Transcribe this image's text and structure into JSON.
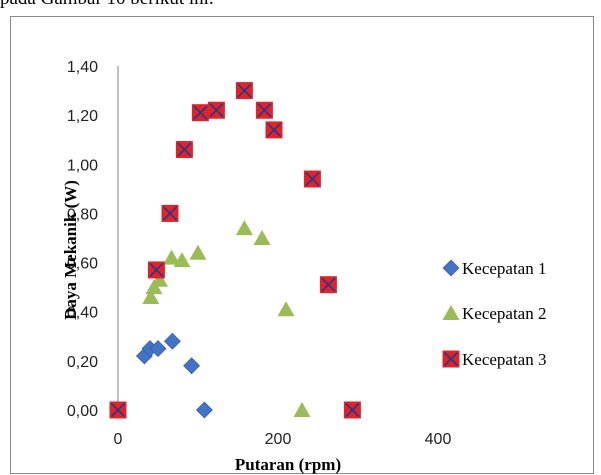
{
  "caption": "pada Gambar 10 berikut ini.",
  "chart_data": {
    "type": "scatter",
    "xlabel": "Putaran (rpm)",
    "ylabel": "Daya Mekanik  (W)",
    "xlim": [
      0,
      400
    ],
    "ylim": [
      0,
      1.4
    ],
    "xticks": [
      0,
      200,
      400
    ],
    "xtick_labels": [
      "0",
      "200",
      "400"
    ],
    "yticks": [
      0,
      0.2,
      0.4,
      0.6,
      0.8,
      1.0,
      1.2,
      1.4
    ],
    "ytick_labels": [
      "0,00",
      "0,20",
      "0,40",
      "0,60",
      "0,80",
      "1,00",
      "1,20",
      "1,40"
    ],
    "grid": false,
    "legend_position": "right",
    "series": [
      {
        "name": "Kecepatan 1",
        "marker": "diamond",
        "color": "#4472c4",
        "points": [
          [
            33,
            0.22
          ],
          [
            40,
            0.25
          ],
          [
            50,
            0.25
          ],
          [
            68,
            0.28
          ],
          [
            92,
            0.18
          ],
          [
            108,
            0.0
          ]
        ]
      },
      {
        "name": "Kecepatan 2",
        "marker": "triangle",
        "color": "#9bbb59",
        "points": [
          [
            41,
            0.46
          ],
          [
            45,
            0.5
          ],
          [
            52,
            0.53
          ],
          [
            67,
            0.62
          ],
          [
            80,
            0.61
          ],
          [
            100,
            0.64
          ],
          [
            158,
            0.74
          ],
          [
            180,
            0.7
          ],
          [
            210,
            0.41
          ],
          [
            230,
            0.0
          ]
        ]
      },
      {
        "name": "Kecepatan 3",
        "marker": "square-x",
        "color": "#e0232b",
        "points": [
          [
            0,
            0.0
          ],
          [
            48,
            0.57
          ],
          [
            65,
            0.8
          ],
          [
            83,
            1.06
          ],
          [
            103,
            1.21
          ],
          [
            123,
            1.22
          ],
          [
            158,
            1.3
          ],
          [
            183,
            1.22
          ],
          [
            195,
            1.14
          ],
          [
            243,
            0.94
          ],
          [
            263,
            0.51
          ],
          [
            293,
            0.0
          ]
        ]
      }
    ]
  }
}
